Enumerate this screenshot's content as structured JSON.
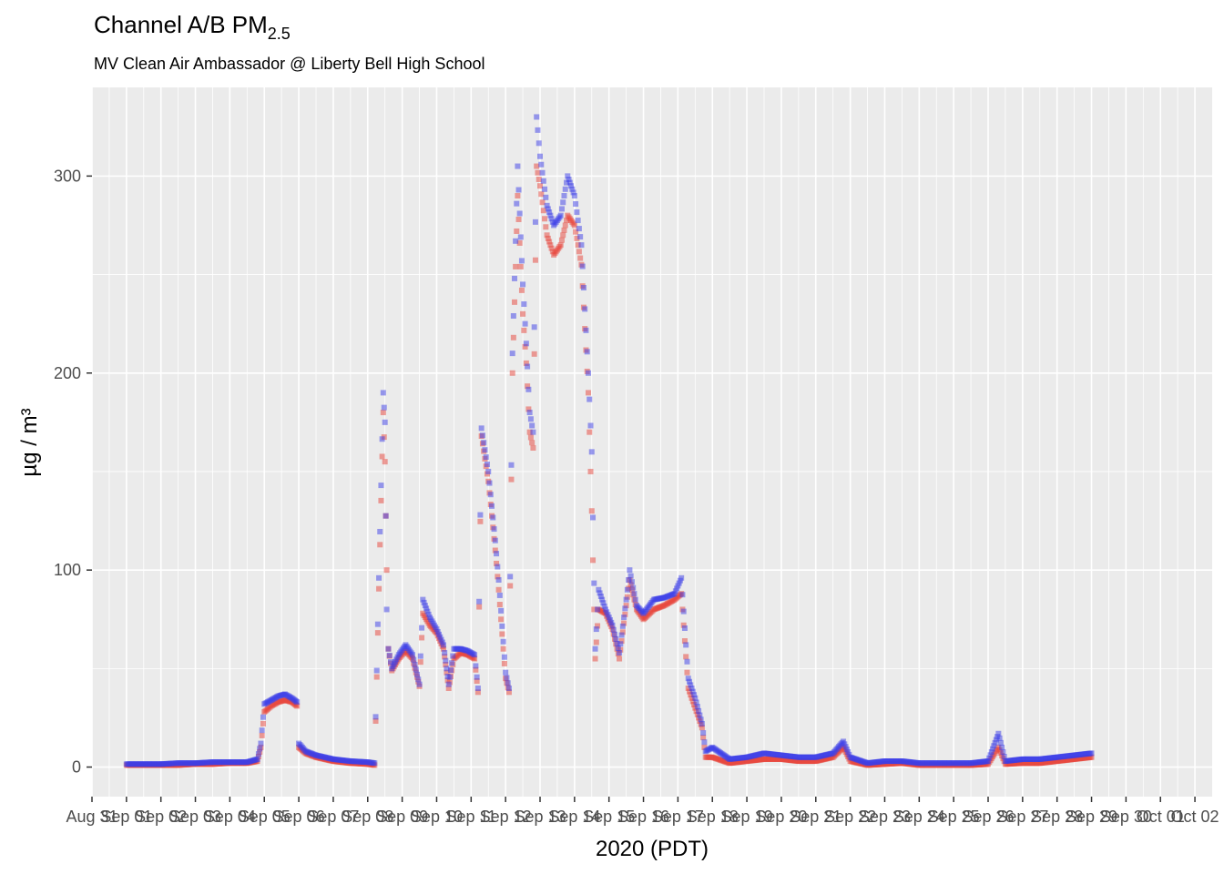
{
  "chart_data": {
    "type": "scatter",
    "title": "Channel A/B PM",
    "title_subscript": "2.5",
    "subtitle": "MV Clean Air Ambassador @ Liberty Bell High School",
    "xlabel": "2020 (PDT)",
    "ylabel": "µg / m³",
    "xlim": [
      "2020-08-31T00:00",
      "2020-10-02T12:00"
    ],
    "ylim": [
      -15,
      345
    ],
    "yticks": [
      0,
      100,
      200,
      300
    ],
    "grid": true,
    "legend": "none",
    "xtick_labels": [
      "Aug 31",
      "Sep 01",
      "Sep 02",
      "Sep 03",
      "Sep 04",
      "Sep 05",
      "Sep 06",
      "Sep 07",
      "Sep 08",
      "Sep 09",
      "Sep 10",
      "Sep 11",
      "Sep 12",
      "Sep 13",
      "Sep 14",
      "Sep 15",
      "Sep 16",
      "Sep 17",
      "Sep 18",
      "Sep 19",
      "Sep 20",
      "Sep 21",
      "Sep 22",
      "Sep 23",
      "Sep 24",
      "Sep 25",
      "Sep 26",
      "Sep 27",
      "Sep 28",
      "Sep 29",
      "Sep 30",
      "Oct 01",
      "Oct 02"
    ],
    "x_unit": "days since 2020-08-31 00:00",
    "series": [
      {
        "name": "Channel A",
        "color": "#e8443a",
        "points": [
          [
            1.0,
            1
          ],
          [
            1.5,
            1
          ],
          [
            2.0,
            1
          ],
          [
            2.5,
            1
          ],
          [
            3.0,
            1.5
          ],
          [
            3.5,
            1.5
          ],
          [
            4.0,
            2
          ],
          [
            4.5,
            2
          ],
          [
            4.8,
            3
          ],
          [
            4.9,
            10
          ],
          [
            5.0,
            28
          ],
          [
            5.2,
            31
          ],
          [
            5.4,
            33
          ],
          [
            5.6,
            34
          ],
          [
            5.8,
            33
          ],
          [
            5.95,
            31
          ],
          [
            6.0,
            10
          ],
          [
            6.2,
            7
          ],
          [
            6.5,
            5
          ],
          [
            7.0,
            3
          ],
          [
            7.5,
            2
          ],
          [
            8.0,
            1.5
          ],
          [
            8.2,
            1
          ],
          [
            8.45,
            180
          ],
          [
            8.5,
            155
          ],
          [
            8.55,
            100
          ],
          [
            8.6,
            60
          ],
          [
            8.7,
            49
          ],
          [
            8.9,
            55
          ],
          [
            9.1,
            59
          ],
          [
            9.3,
            55
          ],
          [
            9.5,
            41
          ],
          [
            9.6,
            78
          ],
          [
            9.8,
            72
          ],
          [
            10.0,
            68
          ],
          [
            10.2,
            60
          ],
          [
            10.35,
            40
          ],
          [
            10.5,
            55
          ],
          [
            10.7,
            58
          ],
          [
            10.9,
            57
          ],
          [
            11.1,
            55
          ],
          [
            11.2,
            38
          ],
          [
            11.3,
            168
          ],
          [
            11.5,
            145
          ],
          [
            11.7,
            110
          ],
          [
            11.8,
            90
          ],
          [
            12.0,
            45
          ],
          [
            12.1,
            38
          ],
          [
            12.2,
            200
          ],
          [
            12.35,
            290
          ],
          [
            12.5,
            230
          ],
          [
            12.6,
            205
          ],
          [
            12.7,
            170
          ],
          [
            12.8,
            162
          ],
          [
            12.9,
            305
          ],
          [
            13.0,
            295
          ],
          [
            13.2,
            270
          ],
          [
            13.4,
            260
          ],
          [
            13.6,
            265
          ],
          [
            13.8,
            280
          ],
          [
            14.0,
            275
          ],
          [
            14.2,
            255
          ],
          [
            14.4,
            190
          ],
          [
            14.5,
            130
          ],
          [
            14.6,
            55
          ],
          [
            14.7,
            80
          ],
          [
            14.9,
            78
          ],
          [
            15.1,
            70
          ],
          [
            15.3,
            55
          ],
          [
            15.5,
            82
          ],
          [
            15.6,
            95
          ],
          [
            15.8,
            80
          ],
          [
            16.0,
            75
          ],
          [
            16.3,
            80
          ],
          [
            16.6,
            82
          ],
          [
            16.9,
            85
          ],
          [
            17.1,
            88
          ],
          [
            17.3,
            40
          ],
          [
            17.5,
            30
          ],
          [
            17.7,
            20
          ],
          [
            17.8,
            5
          ],
          [
            18.0,
            5
          ],
          [
            18.5,
            2
          ],
          [
            19.0,
            3
          ],
          [
            19.5,
            4
          ],
          [
            20.0,
            4
          ],
          [
            20.5,
            3
          ],
          [
            21.0,
            3
          ],
          [
            21.5,
            5
          ],
          [
            21.8,
            10
          ],
          [
            22.0,
            3
          ],
          [
            22.5,
            1
          ],
          [
            23.0,
            1.5
          ],
          [
            23.5,
            2
          ],
          [
            24.0,
            1
          ],
          [
            24.5,
            1
          ],
          [
            25.0,
            1
          ],
          [
            25.5,
            1
          ],
          [
            26.0,
            1.5
          ],
          [
            26.3,
            10
          ],
          [
            26.5,
            1.5
          ],
          [
            27.0,
            2
          ],
          [
            27.5,
            2
          ],
          [
            28.0,
            3
          ],
          [
            28.5,
            4
          ],
          [
            29.0,
            5
          ]
        ]
      },
      {
        "name": "Channel B",
        "color": "#3b3de8",
        "points": [
          [
            1.0,
            1.5
          ],
          [
            1.5,
            1.5
          ],
          [
            2.0,
            1.5
          ],
          [
            2.5,
            2
          ],
          [
            3.0,
            2
          ],
          [
            3.5,
            2.5
          ],
          [
            4.0,
            2.5
          ],
          [
            4.5,
            2.5
          ],
          [
            4.8,
            4
          ],
          [
            4.9,
            12
          ],
          [
            5.0,
            32
          ],
          [
            5.2,
            34
          ],
          [
            5.4,
            36
          ],
          [
            5.6,
            37
          ],
          [
            5.8,
            35
          ],
          [
            5.95,
            33
          ],
          [
            6.0,
            12
          ],
          [
            6.2,
            8
          ],
          [
            6.5,
            6
          ],
          [
            7.0,
            4
          ],
          [
            7.5,
            3
          ],
          [
            8.0,
            2.5
          ],
          [
            8.2,
            2
          ],
          [
            8.45,
            190
          ],
          [
            8.5,
            175
          ],
          [
            8.55,
            80
          ],
          [
            8.6,
            60
          ],
          [
            8.7,
            50
          ],
          [
            8.9,
            57
          ],
          [
            9.1,
            62
          ],
          [
            9.3,
            57
          ],
          [
            9.5,
            42
          ],
          [
            9.6,
            85
          ],
          [
            9.8,
            76
          ],
          [
            10.0,
            70
          ],
          [
            10.2,
            62
          ],
          [
            10.35,
            42
          ],
          [
            10.5,
            60
          ],
          [
            10.7,
            60
          ],
          [
            10.9,
            59
          ],
          [
            11.1,
            57
          ],
          [
            11.2,
            40
          ],
          [
            11.3,
            172
          ],
          [
            11.5,
            150
          ],
          [
            11.7,
            115
          ],
          [
            11.8,
            95
          ],
          [
            12.0,
            48
          ],
          [
            12.1,
            40
          ],
          [
            12.2,
            210
          ],
          [
            12.35,
            305
          ],
          [
            12.5,
            245
          ],
          [
            12.6,
            215
          ],
          [
            12.7,
            180
          ],
          [
            12.8,
            170
          ],
          [
            12.9,
            330
          ],
          [
            13.0,
            310
          ],
          [
            13.2,
            285
          ],
          [
            13.4,
            275
          ],
          [
            13.6,
            280
          ],
          [
            13.8,
            300
          ],
          [
            14.0,
            290
          ],
          [
            14.2,
            265
          ],
          [
            14.4,
            200
          ],
          [
            14.5,
            160
          ],
          [
            14.6,
            60
          ],
          [
            14.7,
            90
          ],
          [
            14.9,
            80
          ],
          [
            15.1,
            72
          ],
          [
            15.3,
            58
          ],
          [
            15.5,
            85
          ],
          [
            15.6,
            100
          ],
          [
            15.8,
            82
          ],
          [
            16.0,
            78
          ],
          [
            16.3,
            85
          ],
          [
            16.6,
            86
          ],
          [
            16.9,
            88
          ],
          [
            17.1,
            96
          ],
          [
            17.3,
            45
          ],
          [
            17.5,
            35
          ],
          [
            17.7,
            22
          ],
          [
            17.8,
            8
          ],
          [
            18.0,
            10
          ],
          [
            18.5,
            4
          ],
          [
            19.0,
            5
          ],
          [
            19.5,
            7
          ],
          [
            20.0,
            6
          ],
          [
            20.5,
            5
          ],
          [
            21.0,
            5
          ],
          [
            21.5,
            7
          ],
          [
            21.8,
            13
          ],
          [
            22.0,
            5
          ],
          [
            22.5,
            2
          ],
          [
            23.0,
            3
          ],
          [
            23.5,
            3
          ],
          [
            24.0,
            2
          ],
          [
            24.5,
            2
          ],
          [
            25.0,
            2
          ],
          [
            25.5,
            2
          ],
          [
            26.0,
            3
          ],
          [
            26.3,
            17
          ],
          [
            26.5,
            3
          ],
          [
            27.0,
            4
          ],
          [
            27.5,
            4
          ],
          [
            28.0,
            5
          ],
          [
            28.5,
            6
          ],
          [
            29.0,
            7
          ]
        ]
      }
    ]
  }
}
